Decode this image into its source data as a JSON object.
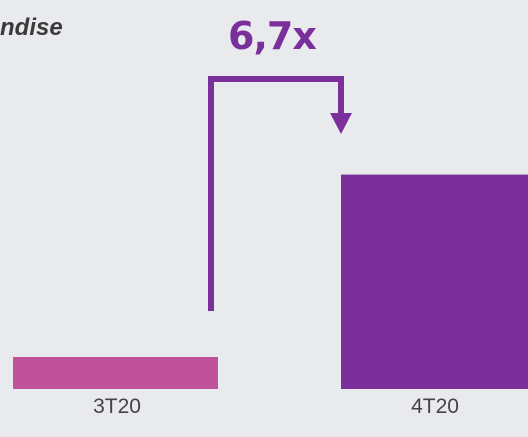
{
  "chart_data": {
    "type": "bar",
    "title": "ndise",
    "categories": [
      "3T20",
      "4T20"
    ],
    "values": [
      1,
      6.7
    ],
    "annotation": "6,7x",
    "colors": [
      "#c0529b",
      "#7a2f9a"
    ],
    "background": "#e8eaed",
    "grid": false
  }
}
